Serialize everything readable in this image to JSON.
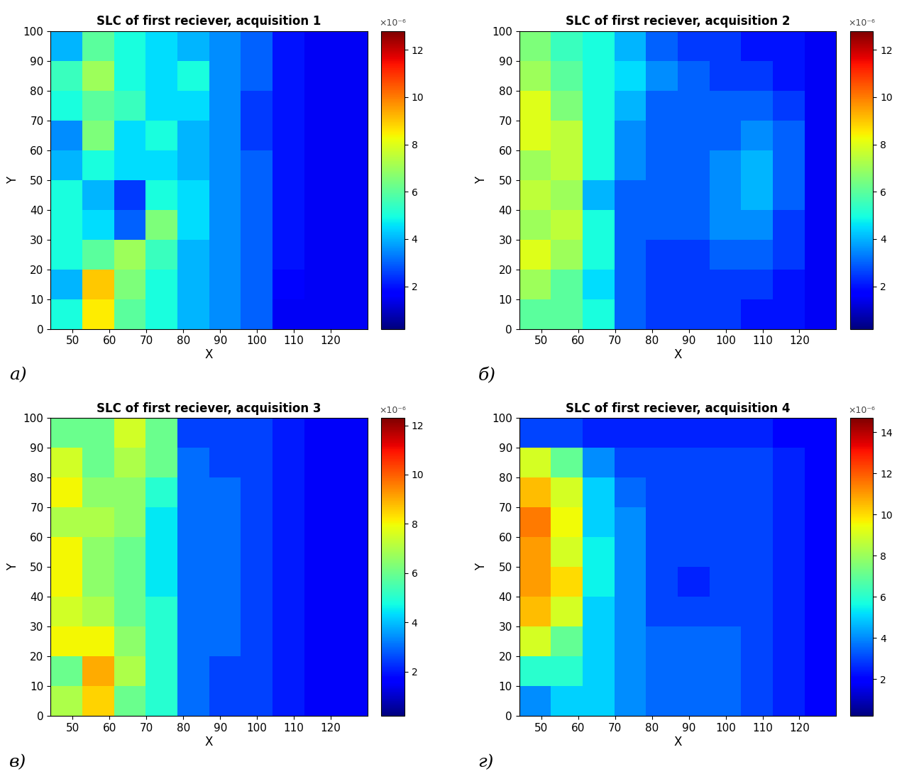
{
  "chart_data": [
    {
      "type": "heatmap",
      "title": "SLC of first reciever, acquisition 1",
      "panel_label": "а)",
      "xlabel": "X",
      "ylabel": "Y",
      "xlim": [
        44,
        130
      ],
      "ylim": [
        0,
        100
      ],
      "xticks": [
        50,
        60,
        70,
        80,
        90,
        100,
        110,
        120
      ],
      "yticks": [
        0,
        10,
        20,
        30,
        40,
        50,
        60,
        70,
        80,
        90,
        100
      ],
      "x_edges": [
        44,
        52.6,
        61.2,
        69.8,
        78.4,
        87,
        95.6,
        104.2,
        112.8,
        121.4,
        130
      ],
      "y_edges": [
        0,
        10,
        20,
        30,
        40,
        50,
        60,
        70,
        80,
        90,
        100
      ],
      "cells": [
        [
          5e-06,
          8.5e-06,
          6e-06,
          5e-06,
          4e-06,
          3.5e-06,
          3e-06,
          1.5e-06,
          1.5e-06,
          1.5e-06
        ],
        [
          4e-06,
          9e-06,
          6.5e-06,
          5e-06,
          4e-06,
          3.5e-06,
          3e-06,
          1.8e-06,
          1.5e-06,
          1.5e-06
        ],
        [
          5e-06,
          6e-06,
          7e-06,
          5.5e-06,
          4e-06,
          3.5e-06,
          3e-06,
          2e-06,
          1.5e-06,
          1.5e-06
        ],
        [
          5e-06,
          4.5e-06,
          3e-06,
          6.5e-06,
          4.5e-06,
          3.5e-06,
          3e-06,
          2e-06,
          1.5e-06,
          1.5e-06
        ],
        [
          5e-06,
          4e-06,
          2.5e-06,
          5e-06,
          4.5e-06,
          3.5e-06,
          3e-06,
          2e-06,
          1.5e-06,
          1.5e-06
        ],
        [
          4e-06,
          5e-06,
          4.5e-06,
          4.5e-06,
          4e-06,
          3.5e-06,
          3e-06,
          2e-06,
          1.5e-06,
          1.5e-06
        ],
        [
          3.5e-06,
          6.5e-06,
          4.5e-06,
          5e-06,
          4e-06,
          3.5e-06,
          2.5e-06,
          2e-06,
          1.5e-06,
          1.5e-06
        ],
        [
          5e-06,
          6e-06,
          5.5e-06,
          4.5e-06,
          4.5e-06,
          3.5e-06,
          2.5e-06,
          2e-06,
          1.5e-06,
          1.5e-06
        ],
        [
          5.5e-06,
          7e-06,
          5e-06,
          4.5e-06,
          5e-06,
          3.5e-06,
          3e-06,
          2e-06,
          1.5e-06,
          1.5e-06
        ],
        [
          4e-06,
          6e-06,
          5e-06,
          4.5e-06,
          4e-06,
          3.5e-06,
          3e-06,
          2e-06,
          1.5e-06,
          1.5e-06
        ]
      ],
      "colorbar_range": [
        2e-07,
        1.28e-05
      ],
      "colorbar_ticks": [
        {
          "value": 2e-06,
          "label": "2"
        },
        {
          "value": 4e-06,
          "label": "4"
        },
        {
          "value": 6e-06,
          "label": "6"
        },
        {
          "value": 8e-06,
          "label": "8"
        },
        {
          "value": 1e-05,
          "label": "10"
        },
        {
          "value": 1.2e-05,
          "label": "12"
        }
      ],
      "colorbar_multiplier": "×10⁻⁶"
    },
    {
      "type": "heatmap",
      "title": "SLC of first reciever, acquisition 2",
      "panel_label": "б)",
      "xlabel": "X",
      "ylabel": "Y",
      "xlim": [
        44,
        130
      ],
      "ylim": [
        0,
        100
      ],
      "xticks": [
        50,
        60,
        70,
        80,
        90,
        100,
        110,
        120
      ],
      "yticks": [
        0,
        10,
        20,
        30,
        40,
        50,
        60,
        70,
        80,
        90,
        100
      ],
      "x_edges": [
        44,
        52.6,
        61.2,
        69.8,
        78.4,
        87,
        95.6,
        104.2,
        112.8,
        121.4,
        130
      ],
      "y_edges": [
        0,
        10,
        20,
        30,
        40,
        50,
        60,
        70,
        80,
        90,
        100
      ],
      "cells": [
        [
          6e-06,
          6e-06,
          5e-06,
          3e-06,
          2.5e-06,
          2.5e-06,
          2.5e-06,
          2e-06,
          2e-06,
          1.5e-06
        ],
        [
          7e-06,
          6e-06,
          4.5e-06,
          3e-06,
          2.5e-06,
          2.5e-06,
          2.5e-06,
          2.5e-06,
          2e-06,
          1.5e-06
        ],
        [
          8e-06,
          7e-06,
          5e-06,
          3e-06,
          2.5e-06,
          2.5e-06,
          3e-06,
          3e-06,
          2.5e-06,
          1.5e-06
        ],
        [
          7e-06,
          7.5e-06,
          5e-06,
          3e-06,
          3e-06,
          3e-06,
          3.5e-06,
          3.5e-06,
          2.5e-06,
          1.5e-06
        ],
        [
          7.5e-06,
          7e-06,
          4e-06,
          3e-06,
          3e-06,
          3e-06,
          3.5e-06,
          4e-06,
          3e-06,
          1.5e-06
        ],
        [
          7e-06,
          7.5e-06,
          5e-06,
          3.5e-06,
          3e-06,
          3e-06,
          3.5e-06,
          4e-06,
          3e-06,
          1.5e-06
        ],
        [
          8e-06,
          7.5e-06,
          5e-06,
          3.5e-06,
          3e-06,
          3e-06,
          3e-06,
          3.5e-06,
          3e-06,
          1.5e-06
        ],
        [
          8e-06,
          6.5e-06,
          5e-06,
          4e-06,
          3e-06,
          3e-06,
          3e-06,
          3e-06,
          2.5e-06,
          1.5e-06
        ],
        [
          7e-06,
          6e-06,
          5e-06,
          4.5e-06,
          3.5e-06,
          3e-06,
          2.5e-06,
          2.5e-06,
          2e-06,
          1.5e-06
        ],
        [
          6.5e-06,
          5.5e-06,
          5e-06,
          4e-06,
          3e-06,
          2.5e-06,
          2.5e-06,
          2e-06,
          2e-06,
          1.5e-06
        ]
      ],
      "colorbar_range": [
        2e-07,
        1.28e-05
      ],
      "colorbar_ticks": [
        {
          "value": 2e-06,
          "label": "2"
        },
        {
          "value": 4e-06,
          "label": "4"
        },
        {
          "value": 6e-06,
          "label": "6"
        },
        {
          "value": 8e-06,
          "label": "8"
        },
        {
          "value": 1e-05,
          "label": "10"
        },
        {
          "value": 1.2e-05,
          "label": "12"
        }
      ],
      "colorbar_multiplier": "×10⁻⁶"
    },
    {
      "type": "heatmap",
      "title": "SLC of first reciever, acquisition 3",
      "panel_label": "в)",
      "xlabel": "X",
      "ylabel": "Y",
      "xlim": [
        44,
        130
      ],
      "ylim": [
        0,
        100
      ],
      "xticks": [
        50,
        60,
        70,
        80,
        90,
        100,
        110,
        120
      ],
      "yticks": [
        0,
        10,
        20,
        30,
        40,
        50,
        60,
        70,
        80,
        90,
        100
      ],
      "x_edges": [
        44,
        52.6,
        61.2,
        69.8,
        78.4,
        87,
        95.6,
        104.2,
        112.8,
        121.4,
        130
      ],
      "y_edges": [
        0,
        10,
        20,
        30,
        40,
        50,
        60,
        70,
        80,
        90,
        100
      ],
      "cells": [
        [
          7e-06,
          8.5e-06,
          6e-06,
          5e-06,
          3e-06,
          2.5e-06,
          2.5e-06,
          2e-06,
          1.5e-06,
          1.5e-06
        ],
        [
          6e-06,
          9e-06,
          7e-06,
          5e-06,
          3e-06,
          2.5e-06,
          2.5e-06,
          2e-06,
          1.5e-06,
          1.5e-06
        ],
        [
          8e-06,
          8e-06,
          6.5e-06,
          5e-06,
          3e-06,
          3e-06,
          2.5e-06,
          2e-06,
          1.5e-06,
          1.5e-06
        ],
        [
          7.5e-06,
          7e-06,
          6e-06,
          5e-06,
          3e-06,
          3e-06,
          2.5e-06,
          2e-06,
          1.5e-06,
          1.5e-06
        ],
        [
          8e-06,
          6.5e-06,
          6e-06,
          4.5e-06,
          3e-06,
          3e-06,
          2.5e-06,
          2e-06,
          1.5e-06,
          1.5e-06
        ],
        [
          8e-06,
          6.5e-06,
          6e-06,
          4.5e-06,
          3e-06,
          3e-06,
          2.5e-06,
          2e-06,
          1.5e-06,
          1.5e-06
        ],
        [
          7e-06,
          7e-06,
          6.5e-06,
          4.5e-06,
          3e-06,
          3e-06,
          2.5e-06,
          2e-06,
          1.5e-06,
          1.5e-06
        ],
        [
          8e-06,
          6.5e-06,
          6.5e-06,
          5e-06,
          3e-06,
          3e-06,
          2.5e-06,
          2e-06,
          1.5e-06,
          1.5e-06
        ],
        [
          7.5e-06,
          6e-06,
          7e-06,
          6e-06,
          3e-06,
          2.5e-06,
          2.5e-06,
          2e-06,
          1.5e-06,
          1.5e-06
        ],
        [
          6e-06,
          6e-06,
          7.5e-06,
          6e-06,
          2.5e-06,
          2.5e-06,
          2.5e-06,
          2e-06,
          1.5e-06,
          1.5e-06
        ]
      ],
      "colorbar_range": [
        2e-07,
        1.23e-05
      ],
      "colorbar_ticks": [
        {
          "value": 2e-06,
          "label": "2"
        },
        {
          "value": 4e-06,
          "label": "4"
        },
        {
          "value": 6e-06,
          "label": "6"
        },
        {
          "value": 8e-06,
          "label": "8"
        },
        {
          "value": 1e-05,
          "label": "10"
        },
        {
          "value": 1.2e-05,
          "label": "12"
        }
      ],
      "colorbar_multiplier": "×10⁻⁶"
    },
    {
      "type": "heatmap",
      "title": "SLC of first reciever, acquisition 4",
      "panel_label": "г)",
      "xlabel": "X",
      "ylabel": "Y",
      "xlim": [
        44,
        130
      ],
      "ylim": [
        0,
        100
      ],
      "xticks": [
        50,
        60,
        70,
        80,
        90,
        100,
        110,
        120
      ],
      "yticks": [
        0,
        10,
        20,
        30,
        40,
        50,
        60,
        70,
        80,
        90,
        100
      ],
      "x_edges": [
        44,
        52.6,
        61.2,
        69.8,
        78.4,
        87,
        95.6,
        104.2,
        112.8,
        121.4,
        130
      ],
      "y_edges": [
        0,
        10,
        20,
        30,
        40,
        50,
        60,
        70,
        80,
        90,
        100
      ],
      "cells": [
        [
          4e-06,
          5e-06,
          5e-06,
          4e-06,
          3.5e-06,
          3.5e-06,
          3.5e-06,
          3e-06,
          2.5e-06,
          2e-06
        ],
        [
          6e-06,
          6e-06,
          5e-06,
          4e-06,
          3.5e-06,
          3.5e-06,
          3.5e-06,
          3e-06,
          2.5e-06,
          2e-06
        ],
        [
          9e-06,
          7e-06,
          5e-06,
          4e-06,
          3.5e-06,
          3.5e-06,
          3.5e-06,
          3e-06,
          2.5e-06,
          2e-06
        ],
        [
          1.05e-05,
          9e-06,
          5e-06,
          4e-06,
          3e-06,
          3e-06,
          3e-06,
          3e-06,
          2.5e-06,
          2e-06
        ],
        [
          1.1e-05,
          1e-05,
          5.5e-06,
          4e-06,
          3e-06,
          2.5e-06,
          3e-06,
          3e-06,
          2.5e-06,
          2e-06
        ],
        [
          1.1e-05,
          9e-06,
          5.5e-06,
          4e-06,
          3e-06,
          3e-06,
          3e-06,
          3e-06,
          2.5e-06,
          2e-06
        ],
        [
          1.15e-05,
          9.5e-06,
          5e-06,
          4e-06,
          3e-06,
          3e-06,
          3e-06,
          3e-06,
          2.5e-06,
          2e-06
        ],
        [
          1.05e-05,
          9e-06,
          5e-06,
          3.5e-06,
          3e-06,
          3e-06,
          3e-06,
          3e-06,
          2.5e-06,
          2e-06
        ],
        [
          9e-06,
          7e-06,
          4e-06,
          3e-06,
          3e-06,
          3e-06,
          3e-06,
          3e-06,
          2.5e-06,
          2e-06
        ],
        [
          3e-06,
          3e-06,
          2.5e-06,
          2.5e-06,
          2.5e-06,
          2.5e-06,
          2.5e-06,
          2.5e-06,
          2e-06,
          2e-06
        ]
      ],
      "colorbar_range": [
        2e-07,
        1.47e-05
      ],
      "colorbar_ticks": [
        {
          "value": 2e-06,
          "label": "2"
        },
        {
          "value": 4e-06,
          "label": "4"
        },
        {
          "value": 6e-06,
          "label": "6"
        },
        {
          "value": 8e-06,
          "label": "8"
        },
        {
          "value": 1e-05,
          "label": "10"
        },
        {
          "value": 1.2e-05,
          "label": "12"
        },
        {
          "value": 1.4e-05,
          "label": "14"
        }
      ],
      "colorbar_multiplier": "×10⁻⁶"
    }
  ]
}
